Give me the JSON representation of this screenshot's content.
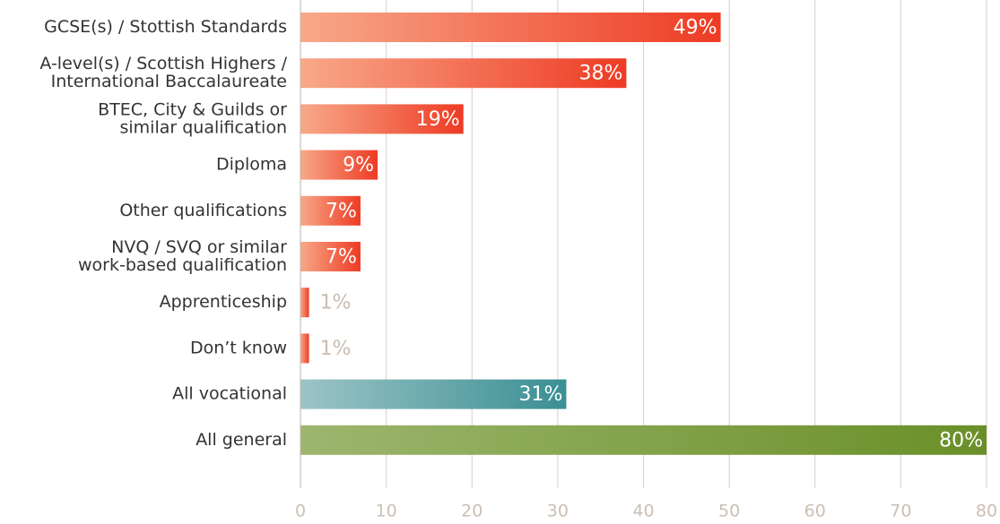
{
  "chart_data": {
    "type": "bar",
    "orientation": "horizontal",
    "categories": [
      [
        "GCSE(s) / Stottish Standards"
      ],
      [
        "A-level(s) / Scottish Highers /",
        "International Baccalaureate"
      ],
      [
        "BTEC, City & Guilds or",
        "similar qualification"
      ],
      [
        "Diploma"
      ],
      [
        "Other qualifications"
      ],
      [
        "NVQ / SVQ or similar",
        "work-based qualification"
      ],
      [
        "Apprenticeship"
      ],
      [
        "Don’t know"
      ],
      [
        "All vocational"
      ],
      [
        "All general"
      ]
    ],
    "values": [
      49,
      38,
      19,
      9,
      7,
      7,
      1,
      1,
      31,
      80
    ],
    "value_labels": [
      "49%",
      "38%",
      "19%",
      "9%",
      "7%",
      "7%",
      "1%",
      "1%",
      "31%",
      "80%"
    ],
    "colors": [
      [
        "#f8a889",
        "#ee3b24"
      ],
      [
        "#f8a889",
        "#ee3b24"
      ],
      [
        "#f8a889",
        "#ee3b24"
      ],
      [
        "#f8a889",
        "#ee3b24"
      ],
      [
        "#f8a889",
        "#ee3b24"
      ],
      [
        "#f8a889",
        "#ee3b24"
      ],
      [
        "#f8a889",
        "#ee3b24"
      ],
      [
        "#f8a889",
        "#ee3b24"
      ],
      [
        "#9cc4c6",
        "#3a8f94"
      ],
      [
        "#9db66e",
        "#6a8f28"
      ]
    ],
    "xlim": [
      0,
      80
    ],
    "xticks": [
      0,
      10,
      20,
      30,
      40,
      50,
      60,
      70,
      80
    ],
    "grid": true
  }
}
